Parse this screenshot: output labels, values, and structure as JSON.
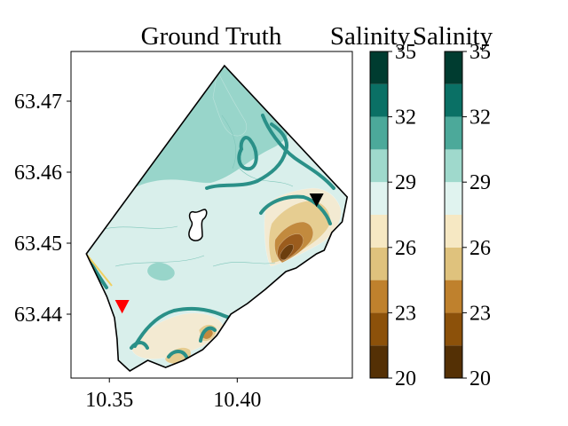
{
  "chart_data": [
    {
      "type": "heatmap",
      "title": "Ground Truth",
      "xlabel": "",
      "ylabel": "",
      "xlim": [
        10.335,
        10.445
      ],
      "ylim": [
        63.431,
        63.477
      ],
      "x_ticks": [
        10.35,
        10.4
      ],
      "x_tick_labels": [
        "10.35",
        "10.40"
      ],
      "y_ticks": [
        63.44,
        63.45,
        63.46,
        63.47
      ],
      "y_tick_labels": [
        "63.44",
        "63.45",
        "63.46",
        "63.47"
      ],
      "grid": false,
      "domain_outline": [
        [
          10.341,
          63.4485
        ],
        [
          10.395,
          63.475
        ],
        [
          10.443,
          63.4565
        ],
        [
          10.441,
          63.453
        ],
        [
          10.437,
          63.4515
        ],
        [
          10.434,
          63.449
        ],
        [
          10.431,
          63.4485
        ],
        [
          10.423,
          63.4465
        ],
        [
          10.419,
          63.446
        ],
        [
          10.411,
          63.4435
        ],
        [
          10.404,
          63.4415
        ],
        [
          10.3975,
          63.44
        ],
        [
          10.392,
          63.437
        ],
        [
          10.3865,
          63.435
        ],
        [
          10.379,
          63.4335
        ],
        [
          10.372,
          63.4325
        ],
        [
          10.365,
          63.4335
        ],
        [
          10.358,
          63.432
        ],
        [
          10.3535,
          63.4335
        ],
        [
          10.353,
          63.4365
        ],
        [
          10.352,
          63.4395
        ],
        [
          10.349,
          63.4425
        ],
        [
          10.345,
          63.4455
        ],
        [
          10.341,
          63.4485
        ]
      ],
      "markers": [
        {
          "x": 10.355,
          "y": 63.441,
          "shape": "triangle-down",
          "color": "#ff0000"
        },
        {
          "x": 10.431,
          "y": 63.456,
          "shape": "triangle-down",
          "color": "#000000"
        }
      ],
      "field_levels": [
        20,
        21.5,
        23,
        24.5,
        26,
        27.5,
        29,
        30.5,
        32,
        33.5,
        35
      ],
      "bands": [
        {
          "from": 29,
          "to": 30.5,
          "color": "#d9efeb",
          "region": "main basin"
        },
        {
          "from": 30.5,
          "to": 32,
          "color": "#98d5ca",
          "region": "western and northern shelf"
        },
        {
          "from": 27.5,
          "to": 29,
          "color": "#f3ead2",
          "region": "river plumes"
        },
        {
          "from": 26,
          "to": 27.5,
          "color": "#e6cd91",
          "region": "river plumes"
        },
        {
          "from": 24.5,
          "to": 26,
          "color": "#c28a3e",
          "region": "eastern river mouth"
        },
        {
          "from": 23,
          "to": 24.5,
          "color": "#9b5c1d",
          "region": "eastern river mouth"
        },
        {
          "from": 20,
          "to": 21.5,
          "color": "#6c3e0e",
          "region": "eastern river mouth"
        }
      ]
    },
    {
      "type": "colorbar",
      "title": "Salinity",
      "levels": [
        20,
        21.5,
        23,
        24.5,
        26,
        27.5,
        29,
        30.5,
        32,
        33.5,
        35
      ],
      "colors": [
        "#543005",
        "#8c510a",
        "#bf812d",
        "#dfc27d",
        "#f6e8c3",
        "#e0f3ef",
        "#9fd9cc",
        "#4ca99a",
        "#0a7065",
        "#003c30"
      ],
      "ticks": [
        20,
        23,
        26,
        29,
        32,
        35
      ],
      "tick_labels": [
        "20",
        "23",
        "26",
        "29",
        "32",
        "35"
      ]
    },
    {
      "type": "colorbar",
      "title": "Salinity",
      "levels": [
        20,
        21.5,
        23,
        24.5,
        26,
        27.5,
        29,
        30.5,
        32,
        33.5,
        35
      ],
      "colors": [
        "#543005",
        "#8c510a",
        "#bf812d",
        "#dfc27d",
        "#f6e8c3",
        "#e0f3ef",
        "#9fd9cc",
        "#4ca99a",
        "#0a7065",
        "#003c30"
      ],
      "ticks": [
        20,
        23,
        26,
        29,
        32,
        35
      ],
      "tick_labels": [
        "20",
        "23",
        "26",
        "29",
        "32",
        "35"
      ]
    }
  ],
  "colors": {
    "contour_line": "#2a9088",
    "outline": "#000000"
  }
}
